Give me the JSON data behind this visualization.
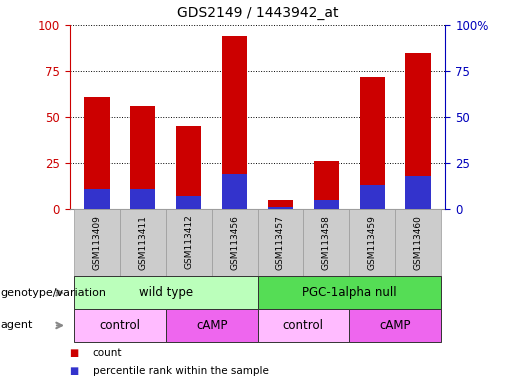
{
  "title": "GDS2149 / 1443942_at",
  "samples": [
    "GSM113409",
    "GSM113411",
    "GSM113412",
    "GSM113456",
    "GSM113457",
    "GSM113458",
    "GSM113459",
    "GSM113460"
  ],
  "count_values": [
    61,
    56,
    45,
    94,
    5,
    26,
    72,
    85
  ],
  "percentile_values": [
    11,
    11,
    7,
    19,
    1,
    5,
    13,
    18
  ],
  "bar_color_red": "#CC0000",
  "bar_color_blue": "#3333CC",
  "genotype_groups": [
    {
      "label": "wild type",
      "start": 0,
      "end": 4,
      "color": "#BBFFBB"
    },
    {
      "label": "PGC-1alpha null",
      "start": 4,
      "end": 8,
      "color": "#55DD55"
    }
  ],
  "agent_groups": [
    {
      "label": "control",
      "start": 0,
      "end": 2,
      "color": "#FFBBFF"
    },
    {
      "label": "cAMP",
      "start": 2,
      "end": 4,
      "color": "#EE66EE"
    },
    {
      "label": "control",
      "start": 4,
      "end": 6,
      "color": "#FFBBFF"
    },
    {
      "label": "cAMP",
      "start": 6,
      "end": 8,
      "color": "#EE66EE"
    }
  ],
  "ylim": [
    0,
    100
  ],
  "yticks": [
    0,
    25,
    50,
    75,
    100
  ],
  "legend_items": [
    {
      "label": "count",
      "color": "#CC0000"
    },
    {
      "label": "percentile rank within the sample",
      "color": "#3333CC"
    }
  ],
  "left_label": "genotype/variation",
  "agent_label": "agent",
  "bar_width": 0.55,
  "background_color": "#FFFFFF",
  "tick_color_left": "#CC0000",
  "tick_color_right": "#0000BB",
  "grid_color": "#000000",
  "sample_bg_color": "#CCCCCC",
  "sample_border_color": "#999999"
}
